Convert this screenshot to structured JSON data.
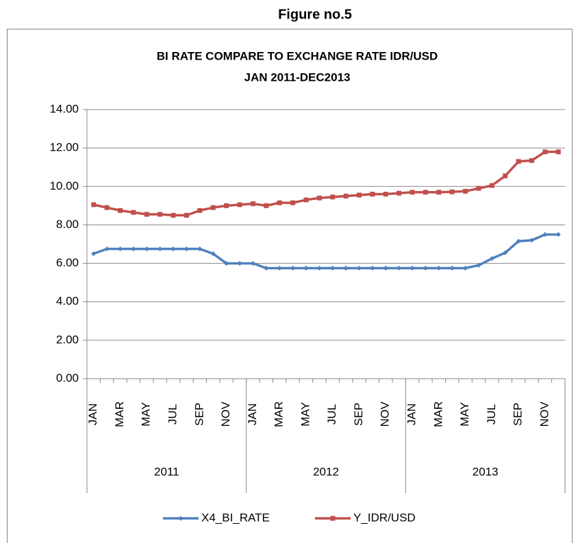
{
  "figure_caption": "Figure no.5",
  "chart_data": {
    "type": "line",
    "title": "BI RATE COMPARE TO EXCHANGE RATE IDR/USD",
    "subtitle": "JAN 2011-DEC2013",
    "categories": [
      "JAN",
      null,
      "MAR",
      null,
      "MAY",
      null,
      "JUL",
      null,
      "SEP",
      null,
      "NOV",
      null,
      "JAN",
      null,
      "MAR",
      null,
      "MAY",
      null,
      "JUL",
      null,
      "SEP",
      null,
      "NOV",
      null,
      "JAN",
      null,
      "MAR",
      null,
      "MAY",
      null,
      "JUL",
      null,
      "SEP",
      null,
      "NOV",
      null
    ],
    "groups": [
      "2011",
      "2012",
      "2013"
    ],
    "series": [
      {
        "name": "X4_BI_RATE",
        "color": "#4f81bd",
        "values": [
          6.5,
          6.75,
          6.75,
          6.75,
          6.75,
          6.75,
          6.75,
          6.75,
          6.75,
          6.5,
          6.0,
          6.0,
          6.0,
          5.75,
          5.75,
          5.75,
          5.75,
          5.75,
          5.75,
          5.75,
          5.75,
          5.75,
          5.75,
          5.75,
          5.75,
          5.75,
          5.75,
          5.75,
          5.75,
          5.9,
          6.25,
          6.55,
          7.15,
          7.2,
          7.5,
          7.5
        ]
      },
      {
        "name": "Y_IDR/USD",
        "color": "#c0504d",
        "values": [
          9.05,
          8.9,
          8.75,
          8.65,
          8.55,
          8.55,
          8.5,
          8.5,
          8.75,
          8.9,
          9.0,
          9.05,
          9.1,
          9.0,
          9.15,
          9.15,
          9.3,
          9.4,
          9.45,
          9.5,
          9.55,
          9.6,
          9.6,
          9.65,
          9.7,
          9.7,
          9.7,
          9.72,
          9.75,
          9.9,
          10.05,
          10.55,
          11.3,
          11.35,
          11.8,
          11.8
        ]
      }
    ],
    "ylim": [
      0,
      14
    ],
    "yticks": [
      {
        "value": 0,
        "label": "0.00"
      },
      {
        "value": 2,
        "label": "2.00"
      },
      {
        "value": 4,
        "label": "4.00"
      },
      {
        "value": 6,
        "label": "6.00"
      },
      {
        "value": 8,
        "label": "8.00"
      },
      {
        "value": 10,
        "label": "10.00"
      },
      {
        "value": 12,
        "label": "12.00"
      },
      {
        "value": 14,
        "label": "14.00"
      }
    ],
    "grid": true,
    "legend": "bottom"
  }
}
